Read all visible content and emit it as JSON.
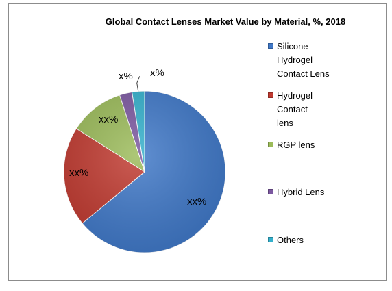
{
  "chart_data": {
    "type": "pie",
    "title": "Global Contact Lenses Market Value by Material, %, 2018",
    "slices": [
      {
        "name": "Silicone Hydrogel Contact Lens",
        "value": 64,
        "label": "xx%",
        "color": "#3f78c8"
      },
      {
        "name": "Hydrogel Contact lens",
        "value": 20,
        "label": "xx%",
        "color": "#c0392f"
      },
      {
        "name": "RGP lens",
        "value": 11,
        "label": "xx%",
        "color": "#9bbb59"
      },
      {
        "name": "Hybrid Lens",
        "value": 2.5,
        "label": "x%",
        "color": "#7b57a0"
      },
      {
        "name": "Others",
        "value": 2.5,
        "label": "x%",
        "color": "#33b0cc"
      }
    ],
    "legend": {
      "position": "right",
      "lines": [
        [
          "Silicone",
          "Hydrogel",
          "Contact Lens"
        ],
        [
          "Hydrogel",
          "Contact",
          "lens"
        ],
        [
          "RGP lens"
        ],
        [
          "Hybrid Lens"
        ],
        [
          "Others"
        ]
      ]
    }
  }
}
